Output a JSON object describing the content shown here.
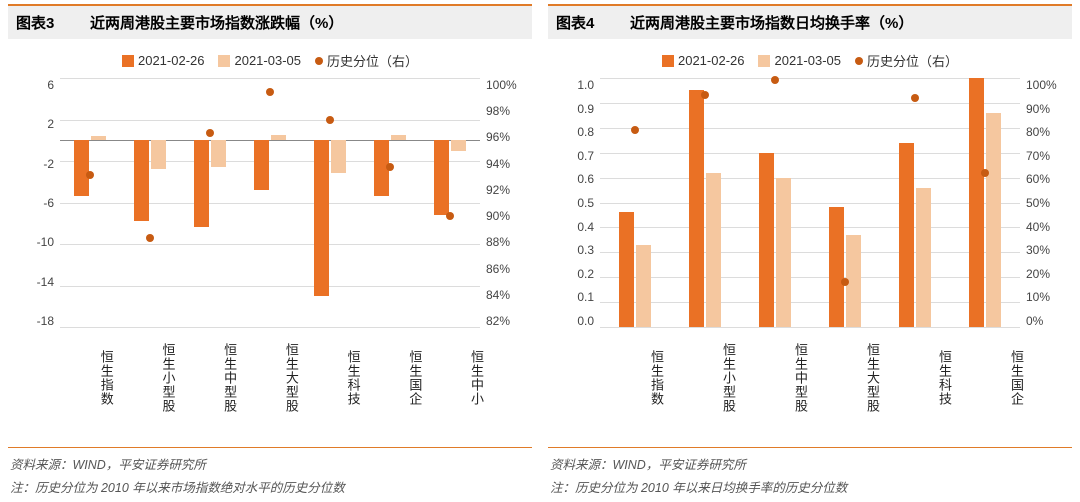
{
  "colors": {
    "series1": "#ea7125",
    "series2": "#f5c79f",
    "dot": "#c75b12",
    "title_border": "#e07b28",
    "grid": "#dcdcdc",
    "axis": "#888888",
    "title_bg": "#efefef"
  },
  "left_chart": {
    "chart_num": "图表3",
    "chart_title": "近两周港股主要市场指数涨跌幅（%）",
    "legend": {
      "s1": "2021-02-26",
      "s2": "2021-03-05",
      "dot": "历史分位（右）"
    },
    "type": "bar+scatter",
    "y_left": {
      "min": -18,
      "max": 6,
      "ticks": [
        6,
        2,
        -2,
        -6,
        -10,
        -14,
        -18
      ]
    },
    "y_right": {
      "min": 82,
      "max": 100,
      "ticks": [
        "100%",
        "98%",
        "96%",
        "94%",
        "92%",
        "90%",
        "88%",
        "86%",
        "84%",
        "82%"
      ]
    },
    "categories": [
      "恒生指数",
      "恒生小型股",
      "恒生中型股",
      "恒生大型股",
      "恒生科技",
      "恒生国企",
      "恒生中小"
    ],
    "s1_values": [
      -5.4,
      -7.8,
      -8.4,
      -4.8,
      -15.0,
      -5.4,
      -7.2
    ],
    "s2_values": [
      0.4,
      -2.8,
      -2.6,
      0.5,
      -3.2,
      0.5,
      -1.0
    ],
    "dot_values": [
      93.0,
      88.4,
      96.0,
      99.0,
      97.0,
      93.6,
      90.0
    ],
    "bar_width": 0.26,
    "source": "资料来源：WIND，平安证券研究所",
    "note": "注：历史分位为 2010 年以来市场指数绝对水平的历史分位数"
  },
  "right_chart": {
    "chart_num": "图表4",
    "chart_title": "近两周港股主要市场指数日均换手率（%）",
    "legend": {
      "s1": "2021-02-26",
      "s2": "2021-03-05",
      "dot": "历史分位（右）"
    },
    "type": "bar+scatter",
    "y_left": {
      "min": 0,
      "max": 1.0,
      "ticks": [
        "1.0",
        "0.9",
        "0.8",
        "0.7",
        "0.6",
        "0.5",
        "0.4",
        "0.3",
        "0.2",
        "0.1",
        "0.0"
      ]
    },
    "y_right": {
      "min": 0,
      "max": 100,
      "ticks": [
        "100%",
        "90%",
        "80%",
        "70%",
        "60%",
        "50%",
        "40%",
        "30%",
        "20%",
        "10%",
        "0%"
      ]
    },
    "categories": [
      "恒生指数",
      "恒生小型股",
      "恒生中型股",
      "恒生大型股",
      "恒生科技",
      "恒生国企"
    ],
    "s1_values": [
      0.46,
      0.95,
      0.7,
      0.48,
      0.74,
      1.0
    ],
    "s2_values": [
      0.33,
      0.62,
      0.6,
      0.37,
      0.56,
      0.86
    ],
    "dot_values": [
      79,
      93,
      99,
      18,
      92,
      62
    ],
    "bar_width": 0.22,
    "source": "资料来源：WIND，平安证券研究所",
    "note": "注：历史分位为 2010 年以来日均换手率的历史分位数"
  }
}
